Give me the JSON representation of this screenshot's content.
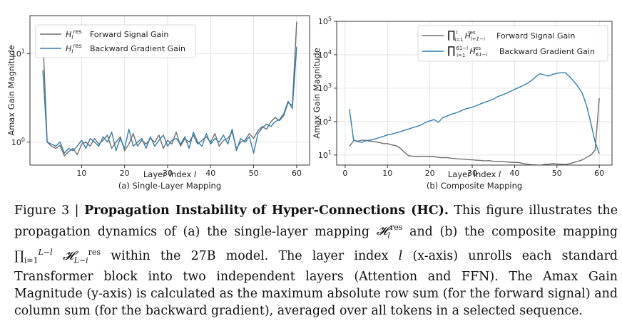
{
  "figure": {
    "panel_a": {
      "subtitle": "(a) Single-Layer Mapping",
      "legend_forward": "Forward Signal Gain",
      "legend_backward": "Backward Gradient Gain"
    },
    "panel_b": {
      "subtitle": "(b) Composite Mapping",
      "legend_forward": "Forward Signal Gain",
      "legend_backward": "Backward Gradient Gain"
    }
  },
  "caption": {
    "label": "Figure 3 |",
    "title": "Propagation Instability of Hyper-Connections (HC).",
    "text_1": " This figure illustrates the propagation dynamics of (a) the single-layer mapping ",
    "text_2": " and (b) the composite mapping ",
    "text_3": " within the 27B model. The layer index ",
    "text_4": " (x-axis) unrolls each standard Transformer block into two independent layers (Attention and FFN). The Amax Gain Magnitude (y-axis) is calculated as the maximum absolute row sum (for the forward signal) and column sum (for the backward gradient), averaged over all tokens in a selected sequence."
  },
  "colors": {
    "forward": "#6d6d6d",
    "backward": "#2f7fb0"
  },
  "chart_data": [
    {
      "type": "line",
      "title": "(a) Single-Layer Mapping",
      "xlabel": "Layer Index l",
      "ylabel": "Amax Gain Magnitude",
      "yscale": "log",
      "xlim": [
        -2,
        63
      ],
      "ylim": [
        0.55,
        27
      ],
      "x_ticks": [
        10,
        20,
        30,
        40,
        50,
        60
      ],
      "y_ticks": [
        {
          "value": 1,
          "label": "10^0"
        },
        {
          "value": 10,
          "label": "10^1"
        }
      ],
      "legend": "top-left",
      "x": [
        1,
        2,
        3,
        4,
        5,
        6,
        7,
        8,
        9,
        10,
        11,
        12,
        13,
        14,
        15,
        16,
        17,
        18,
        19,
        20,
        21,
        22,
        23,
        24,
        25,
        26,
        27,
        28,
        29,
        30,
        31,
        32,
        33,
        34,
        35,
        36,
        37,
        38,
        39,
        40,
        41,
        42,
        43,
        44,
        45,
        46,
        47,
        48,
        49,
        50,
        51,
        52,
        53,
        54,
        55,
        56,
        57,
        58,
        59,
        60
      ],
      "series": [
        {
          "name": "Forward Signal Gain",
          "values": [
            16,
            1.0,
            0.9,
            0.85,
            0.92,
            0.7,
            0.78,
            0.85,
            0.72,
            0.95,
            1.0,
            0.9,
            1.1,
            0.95,
            1.05,
            1.2,
            0.85,
            1.0,
            1.15,
            0.8,
            0.95,
            1.25,
            0.9,
            1.05,
            0.95,
            1.1,
            1.0,
            1.2,
            0.85,
            1.05,
            0.95,
            1.3,
            0.9,
            1.1,
            1.0,
            1.2,
            0.95,
            1.05,
            1.15,
            1.0,
            1.25,
            0.9,
            1.05,
            1.1,
            1.3,
            0.85,
            1.0,
            1.05,
            1.25,
            1.1,
            1.35,
            1.5,
            1.4,
            1.7,
            1.9,
            1.75,
            2.0,
            2.8,
            2.6,
            23
          ]
        },
        {
          "name": "Backward Gradient Gain",
          "values": [
            6.5,
            1.0,
            0.95,
            0.9,
            1.0,
            0.75,
            0.85,
            0.8,
            0.9,
            1.05,
            0.85,
            1.1,
            1.0,
            0.9,
            1.15,
            1.0,
            1.3,
            0.8,
            1.1,
            0.85,
            1.4,
            0.9,
            1.0,
            1.1,
            0.85,
            1.15,
            0.9,
            1.05,
            1.2,
            0.9,
            1.05,
            1.1,
            0.95,
            1.15,
            0.85,
            1.3,
            1.0,
            0.9,
            1.25,
            0.95,
            1.1,
            1.0,
            1.2,
            0.95,
            1.4,
            0.8,
            1.1,
            1.0,
            1.15,
            0.75,
            1.25,
            1.45,
            1.6,
            1.5,
            1.7,
            1.8,
            2.1,
            2.9,
            2.4,
            12
          ]
        }
      ]
    },
    {
      "type": "line",
      "title": "(b) Composite Mapping",
      "xlabel": "Layer Index l",
      "ylabel": "Amax Gain Magnitude",
      "yscale": "log",
      "xlim": [
        -2,
        63
      ],
      "ylim": [
        5,
        100000
      ],
      "x_ticks": [
        0,
        10,
        20,
        30,
        40,
        50,
        60
      ],
      "y_ticks": [
        {
          "value": 10,
          "label": "10^1"
        },
        {
          "value": 100,
          "label": "10^2"
        },
        {
          "value": 1000,
          "label": "10^3"
        },
        {
          "value": 10000,
          "label": "10^4"
        },
        {
          "value": 100000,
          "label": "10^5"
        }
      ],
      "legend": "top-right",
      "x": [
        1,
        2,
        3,
        4,
        5,
        6,
        7,
        8,
        9,
        10,
        11,
        12,
        13,
        14,
        15,
        16,
        17,
        18,
        19,
        20,
        21,
        22,
        23,
        24,
        25,
        26,
        27,
        28,
        29,
        30,
        31,
        32,
        33,
        34,
        35,
        36,
        37,
        38,
        39,
        40,
        41,
        42,
        43,
        44,
        45,
        46,
        47,
        48,
        49,
        50,
        51,
        52,
        53,
        54,
        55,
        56,
        57,
        58,
        59,
        60
      ],
      "series": [
        {
          "name": "Forward Signal Gain",
          "values": [
            18,
            27,
            26,
            28,
            27,
            26,
            25,
            24,
            22,
            22,
            20,
            19,
            16,
            12,
            9.5,
            9.2,
            9.0,
            9.2,
            9.1,
            8.9,
            9.0,
            8.5,
            8.3,
            8.4,
            8.0,
            7.8,
            7.6,
            7.5,
            7.3,
            7.2,
            7.0,
            6.9,
            6.7,
            6.8,
            6.5,
            6.3,
            6.4,
            6.2,
            6.1,
            6.0,
            6.0,
            5.6,
            5.3,
            5.1,
            5.0,
            4.9,
            5.2,
            5.3,
            5.5,
            5.4,
            5.3,
            5.2,
            5.5,
            6.0,
            6.5,
            7.2,
            8.5,
            10,
            14,
            500
          ]
        },
        {
          "name": "Backward Gradient Gain",
          "values": [
            240,
            28,
            25,
            24,
            27,
            28,
            30,
            33,
            36,
            40,
            42,
            46,
            50,
            55,
            60,
            66,
            72,
            80,
            95,
            105,
            115,
            95,
            130,
            145,
            165,
            180,
            200,
            230,
            250,
            270,
            300,
            340,
            380,
            420,
            470,
            560,
            620,
            700,
            800,
            920,
            1050,
            1200,
            1400,
            1700,
            2200,
            2700,
            2500,
            2300,
            2600,
            2800,
            2900,
            2900,
            2200,
            1600,
            1100,
            700,
            300,
            90,
            25,
            11
          ]
        }
      ]
    }
  ]
}
